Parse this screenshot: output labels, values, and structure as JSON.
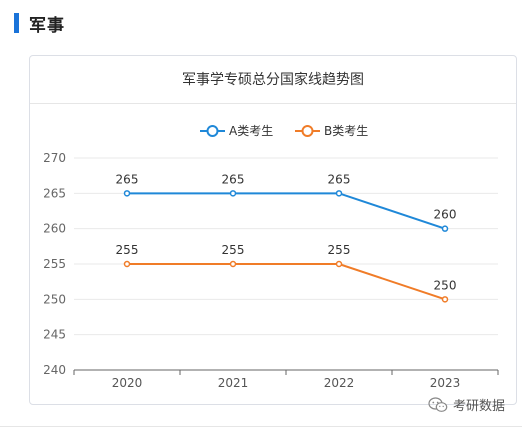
{
  "section": {
    "title": "军事"
  },
  "watermark": {
    "text": "考研数据"
  },
  "chart_data": {
    "type": "line",
    "title": "军事学专硕总分国家线趋势图",
    "categories": [
      "2020",
      "2021",
      "2022",
      "2023"
    ],
    "series": [
      {
        "name": "A类考生",
        "values": [
          265,
          265,
          265,
          260
        ],
        "color": "#1f88d8"
      },
      {
        "name": "B类考生",
        "values": [
          255,
          255,
          255,
          250
        ],
        "color": "#f07c28"
      }
    ],
    "ylim": [
      240,
      270
    ],
    "yticks": [
      240,
      245,
      250,
      255,
      260,
      265,
      270
    ],
    "xlabel": "",
    "ylabel": "",
    "grid": true,
    "legend": "top-center",
    "data_labels": true
  }
}
